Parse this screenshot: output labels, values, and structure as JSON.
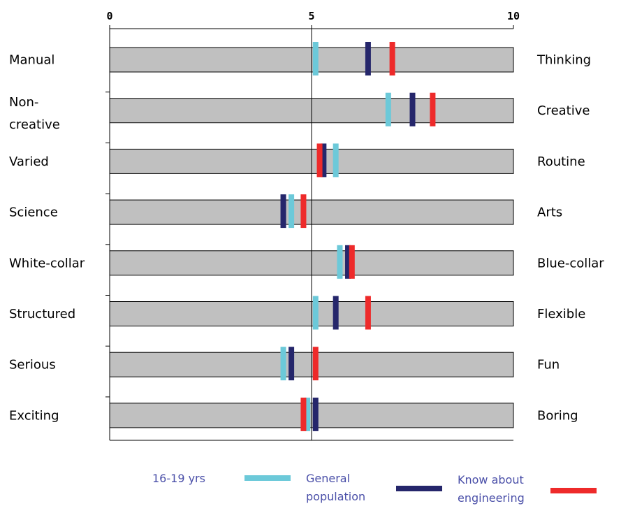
{
  "chart_data": {
    "type": "bar",
    "xlim": [
      0,
      10
    ],
    "x_ticks": [
      "0",
      "5",
      "10"
    ],
    "grid": "vertical line at 5",
    "legend_placement": "bottom",
    "colors": {
      "track": "#c0c0c0",
      "age_16_19": "#6cc9d9",
      "general_population": "#25266b",
      "know_about_engineering": "#ee2a2a"
    },
    "rows": [
      {
        "left": "Manual",
        "right": "Thinking"
      },
      {
        "left": "Non-\ncreative",
        "right": "Creative"
      },
      {
        "left": "Varied",
        "right": "Routine"
      },
      {
        "left": "Science",
        "right": "Arts"
      },
      {
        "left": "White-collar",
        "right": "Blue-collar"
      },
      {
        "left": "Structured",
        "right": "Flexible"
      },
      {
        "left": "Serious",
        "right": "Fun"
      },
      {
        "left": "Exciting",
        "right": "Boring"
      }
    ],
    "series": [
      {
        "name": "16-19 yrs",
        "values": [
          5.1,
          6.9,
          5.6,
          4.5,
          5.7,
          5.1,
          4.3,
          4.9
        ]
      },
      {
        "name": "General\npopulation",
        "values": [
          6.4,
          7.5,
          5.3,
          4.3,
          5.9,
          5.6,
          4.5,
          5.1
        ]
      },
      {
        "name": "Know  about\nengineering",
        "values": [
          7.0,
          8.0,
          5.2,
          4.8,
          6.0,
          6.4,
          5.1,
          4.8
        ]
      }
    ]
  }
}
